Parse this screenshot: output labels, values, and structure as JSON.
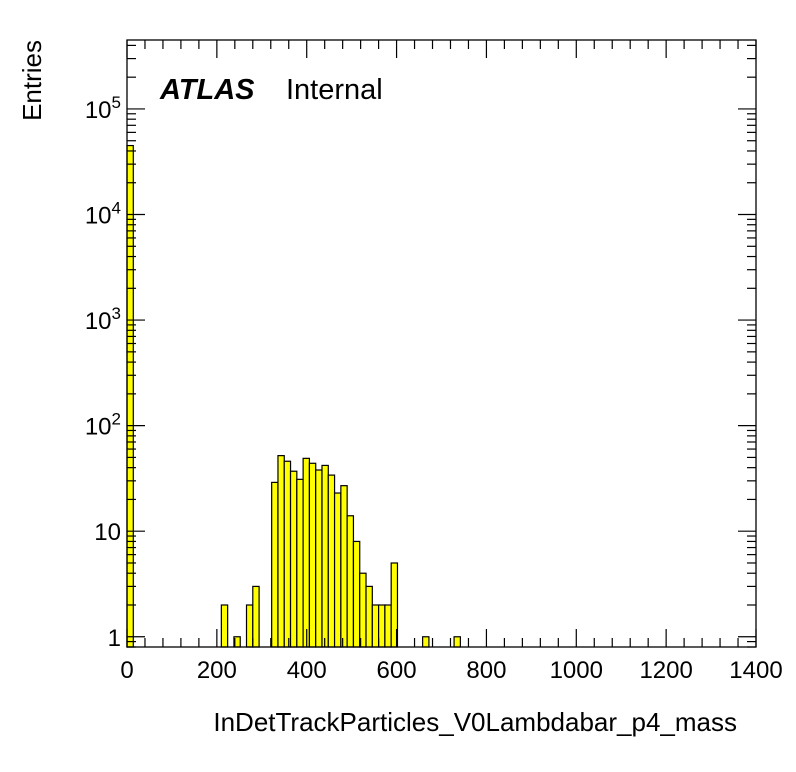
{
  "chart_data": {
    "type": "bar",
    "title": "",
    "xlabel": "InDetTrackParticles_V0Lambdabar_p4_mass",
    "ylabel": "Entries",
    "xlim": [
      0,
      1400
    ],
    "ylim": [
      0.8,
      450000
    ],
    "log_y": true,
    "bin_width": 14,
    "grid": false,
    "legend": "none",
    "colors": {
      "fill": "#ffff00",
      "stroke": "#000000"
    },
    "label_main": "ATLAS",
    "label_sub": "Internal",
    "x_ticks": [
      {
        "value": 0,
        "label": "0"
      },
      {
        "value": 200,
        "label": "200"
      },
      {
        "value": 400,
        "label": "400"
      },
      {
        "value": 600,
        "label": "600"
      },
      {
        "value": 800,
        "label": "800"
      },
      {
        "value": 1000,
        "label": "1000"
      },
      {
        "value": 1200,
        "label": "1200"
      },
      {
        "value": 1400,
        "label": "1400"
      }
    ],
    "y_ticks": [
      {
        "value": 1,
        "base": "1",
        "exp": ""
      },
      {
        "value": 10,
        "base": "10",
        "exp": ""
      },
      {
        "value": 100,
        "base": "10",
        "exp": "2"
      },
      {
        "value": 1000,
        "base": "10",
        "exp": "3"
      },
      {
        "value": 10000,
        "base": "10",
        "exp": "4"
      },
      {
        "value": 100000,
        "base": "10",
        "exp": "5"
      }
    ],
    "bins": [
      {
        "x": 0,
        "y": 45000
      },
      {
        "x": 210,
        "y": 2
      },
      {
        "x": 238,
        "y": 1
      },
      {
        "x": 266,
        "y": 2
      },
      {
        "x": 280,
        "y": 3
      },
      {
        "x": 322,
        "y": 29
      },
      {
        "x": 336,
        "y": 52
      },
      {
        "x": 350,
        "y": 46
      },
      {
        "x": 364,
        "y": 37
      },
      {
        "x": 378,
        "y": 31
      },
      {
        "x": 392,
        "y": 49
      },
      {
        "x": 406,
        "y": 44
      },
      {
        "x": 420,
        "y": 38
      },
      {
        "x": 434,
        "y": 42
      },
      {
        "x": 448,
        "y": 34
      },
      {
        "x": 462,
        "y": 23
      },
      {
        "x": 476,
        "y": 27
      },
      {
        "x": 490,
        "y": 14
      },
      {
        "x": 504,
        "y": 8
      },
      {
        "x": 518,
        "y": 4
      },
      {
        "x": 532,
        "y": 3
      },
      {
        "x": 546,
        "y": 2
      },
      {
        "x": 560,
        "y": 2
      },
      {
        "x": 574,
        "y": 2
      },
      {
        "x": 588,
        "y": 5
      },
      {
        "x": 658,
        "y": 1
      },
      {
        "x": 728,
        "y": 1
      }
    ]
  }
}
